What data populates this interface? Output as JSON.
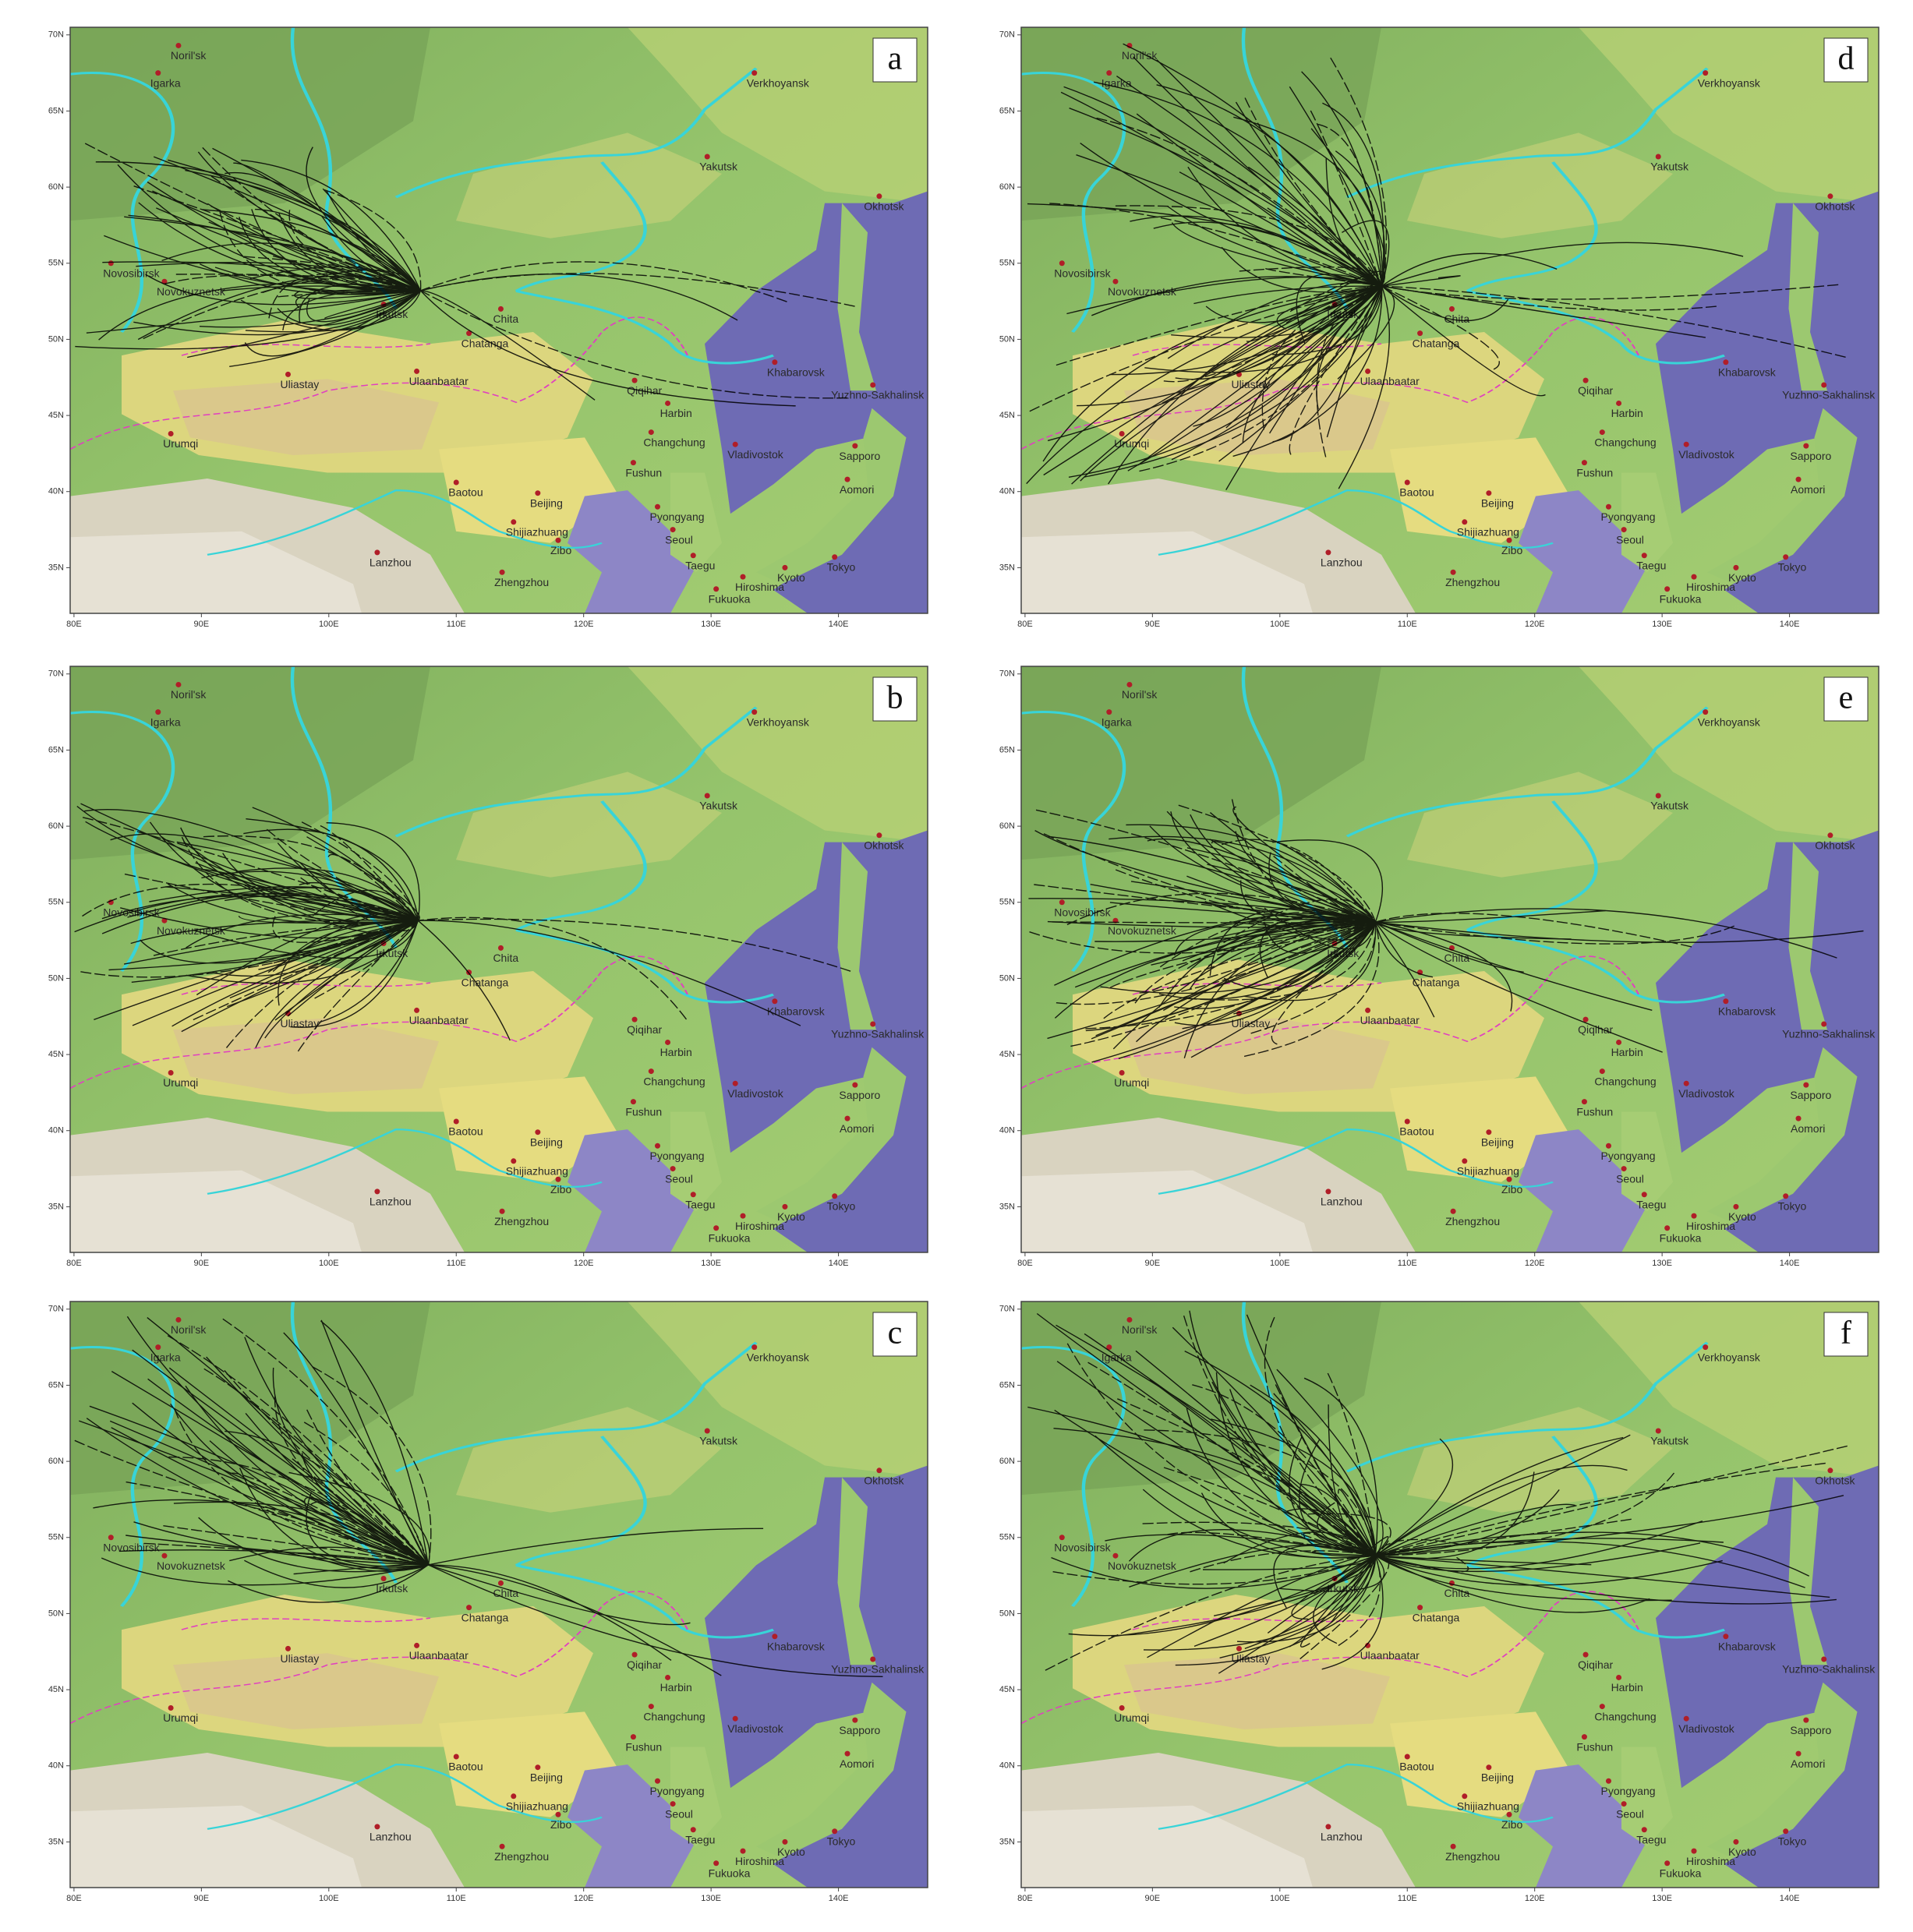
{
  "map": {
    "xlim": [
      79.7,
      147
    ],
    "ylim": [
      32,
      70.5
    ],
    "xticks": [
      {
        "value": 80,
        "label": "80E"
      },
      {
        "value": 90,
        "label": "90E"
      },
      {
        "value": 100,
        "label": "100E"
      },
      {
        "value": 110,
        "label": "110E"
      },
      {
        "value": 120,
        "label": "120E"
      },
      {
        "value": 130,
        "label": "130E"
      },
      {
        "value": 140,
        "label": "140E"
      }
    ],
    "yticks": [
      {
        "value": 70,
        "label": "70N"
      },
      {
        "value": 65,
        "label": "65N"
      },
      {
        "value": 60,
        "label": "60N"
      },
      {
        "value": 55,
        "label": "55N"
      },
      {
        "value": 50,
        "label": "50N"
      },
      {
        "value": 45,
        "label": "45N"
      },
      {
        "value": 40,
        "label": "40N"
      },
      {
        "value": 35,
        "label": "35N"
      }
    ],
    "cities": [
      "Noril'sk",
      "Igarka",
      "Verkhoyansk",
      "Yakutsk",
      "Okhotsk",
      "Novosibirsk",
      "Novokuznetsk",
      "Irkutsk",
      "Chita",
      "Chatanga",
      "Uliastay",
      "Ulaanbaatar",
      "Urumqi",
      "Qiqihar",
      "Harbin",
      "Khabarovsk",
      "Yuzhno-Sakhalinsk",
      "Changchung",
      "Vladivostok",
      "Sapporo",
      "Fushun",
      "Aomori",
      "Baotou",
      "Beijing",
      "Pyongyang",
      "Shijiazhuang",
      "Seoul",
      "Zibo",
      "Lanzhou",
      "Zhengzhou",
      "Taegu",
      "Hiroshima",
      "Kyoto",
      "Tokyo",
      "Fukuoka"
    ]
  },
  "panels": [
    {
      "label": "a"
    },
    {
      "label": "b"
    },
    {
      "label": "c"
    },
    {
      "label": "d"
    },
    {
      "label": "e"
    },
    {
      "label": "f"
    }
  ]
}
